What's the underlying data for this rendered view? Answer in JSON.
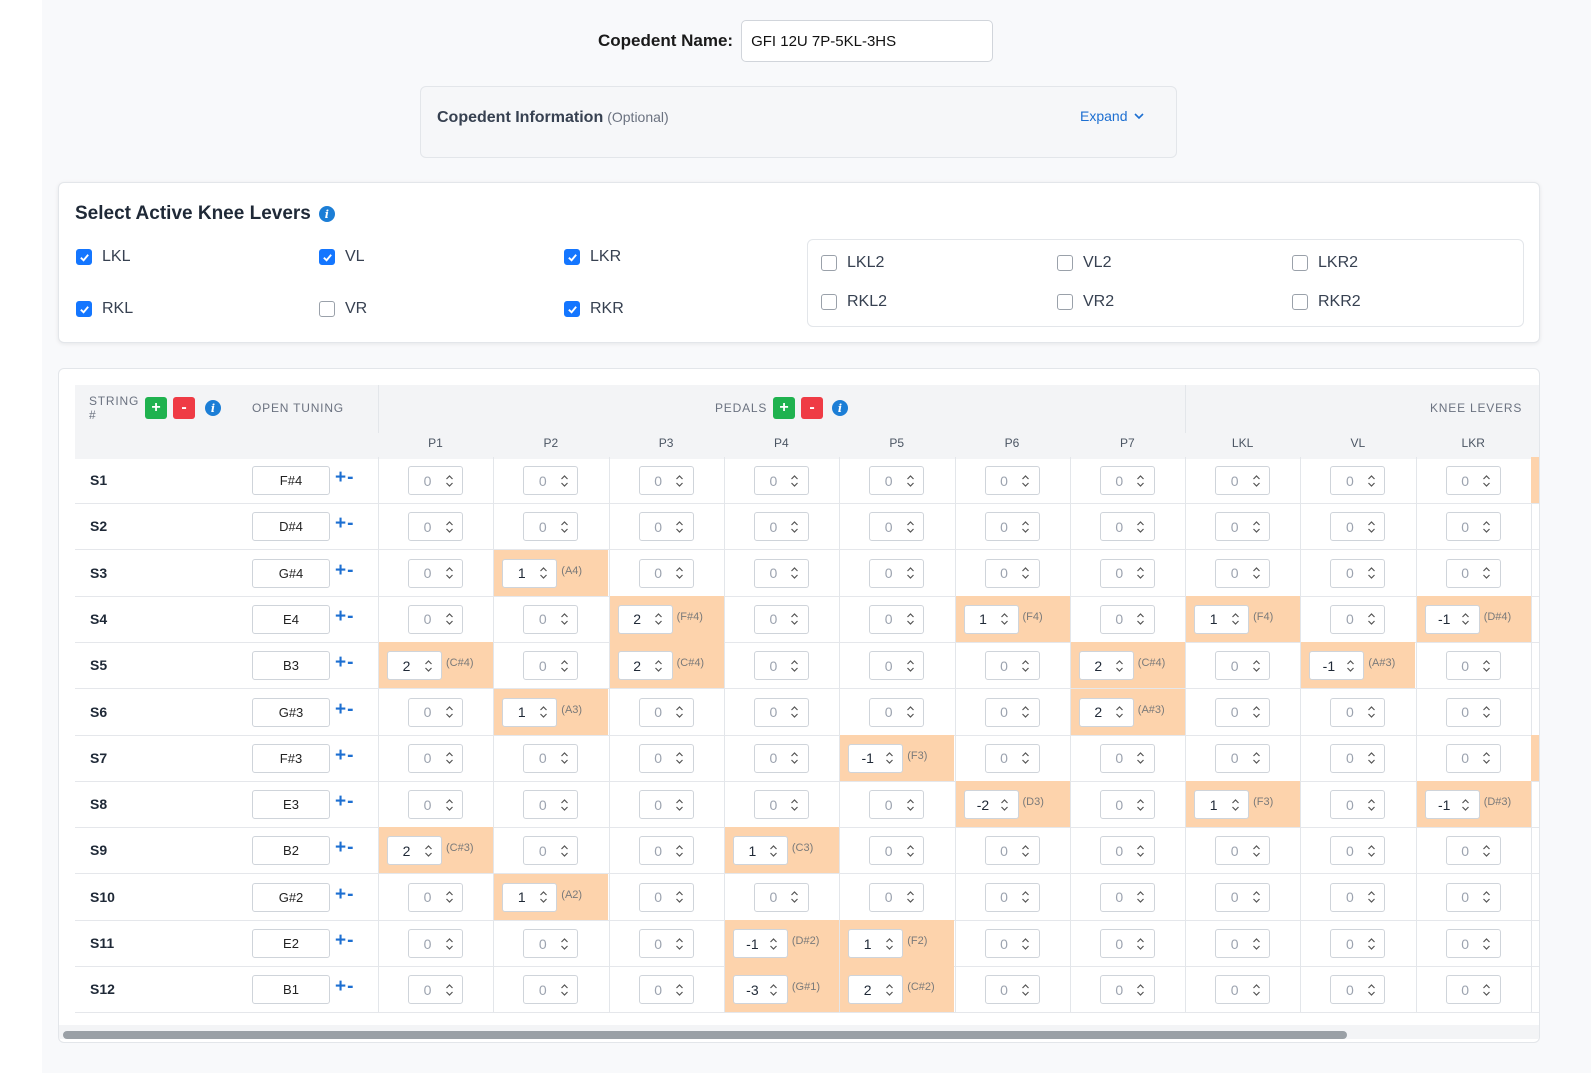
{
  "copedent_name": {
    "label": "Copedent Name:",
    "value": "GFI 12U 7P-5KL-3HS"
  },
  "info_panel": {
    "title": "Copedent Information",
    "optional": "(Optional)",
    "expand_label": "Expand"
  },
  "knee_levers_section": {
    "title": "Select Active Knee Levers",
    "primary": [
      {
        "label": "LKL",
        "checked": true
      },
      {
        "label": "VL",
        "checked": true
      },
      {
        "label": "LKR",
        "checked": true
      },
      {
        "label": "RKL",
        "checked": true
      },
      {
        "label": "VR",
        "checked": false
      },
      {
        "label": "RKR",
        "checked": true
      }
    ],
    "secondary": [
      {
        "label": "LKL2",
        "checked": false
      },
      {
        "label": "VL2",
        "checked": false
      },
      {
        "label": "LKR2",
        "checked": false
      },
      {
        "label": "RKL2",
        "checked": false
      },
      {
        "label": "VR2",
        "checked": false
      },
      {
        "label": "RKR2",
        "checked": false
      }
    ]
  },
  "table": {
    "string_header": "STRING #",
    "tuning_header": "OPEN TUNING",
    "pedals_header": "PEDALS",
    "knee_header": "KNEE LEVERS",
    "columns": [
      "P1",
      "P2",
      "P3",
      "P4",
      "P5",
      "P6",
      "P7",
      "LKL",
      "VL",
      "LKR"
    ],
    "rows": [
      {
        "string": "S1",
        "tuning": "F#4",
        "cells": [
          [
            "0",
            ""
          ],
          [
            "0",
            ""
          ],
          [
            "0",
            ""
          ],
          [
            "0",
            ""
          ],
          [
            "0",
            ""
          ],
          [
            "0",
            ""
          ],
          [
            "0",
            ""
          ],
          [
            "0",
            ""
          ],
          [
            "0",
            ""
          ],
          [
            "0",
            ""
          ]
        ]
      },
      {
        "string": "S2",
        "tuning": "D#4",
        "cells": [
          [
            "0",
            ""
          ],
          [
            "0",
            ""
          ],
          [
            "0",
            ""
          ],
          [
            "0",
            ""
          ],
          [
            "0",
            ""
          ],
          [
            "0",
            ""
          ],
          [
            "0",
            ""
          ],
          [
            "0",
            ""
          ],
          [
            "0",
            ""
          ],
          [
            "0",
            ""
          ]
        ]
      },
      {
        "string": "S3",
        "tuning": "G#4",
        "cells": [
          [
            "0",
            ""
          ],
          [
            "1",
            "(A4)"
          ],
          [
            "0",
            ""
          ],
          [
            "0",
            ""
          ],
          [
            "0",
            ""
          ],
          [
            "0",
            ""
          ],
          [
            "0",
            ""
          ],
          [
            "0",
            ""
          ],
          [
            "0",
            ""
          ],
          [
            "0",
            ""
          ]
        ]
      },
      {
        "string": "S4",
        "tuning": "E4",
        "cells": [
          [
            "0",
            ""
          ],
          [
            "0",
            ""
          ],
          [
            "2",
            "(F#4)"
          ],
          [
            "0",
            ""
          ],
          [
            "0",
            ""
          ],
          [
            "1",
            "(F4)"
          ],
          [
            "0",
            ""
          ],
          [
            "1",
            "(F4)"
          ],
          [
            "0",
            ""
          ],
          [
            "-1",
            "(D#4)"
          ]
        ]
      },
      {
        "string": "S5",
        "tuning": "B3",
        "cells": [
          [
            "2",
            "(C#4)"
          ],
          [
            "0",
            ""
          ],
          [
            "2",
            "(C#4)"
          ],
          [
            "0",
            ""
          ],
          [
            "0",
            ""
          ],
          [
            "0",
            ""
          ],
          [
            "2",
            "(C#4)"
          ],
          [
            "0",
            ""
          ],
          [
            "-1",
            "(A#3)"
          ],
          [
            "0",
            ""
          ]
        ]
      },
      {
        "string": "S6",
        "tuning": "G#3",
        "cells": [
          [
            "0",
            ""
          ],
          [
            "1",
            "(A3)"
          ],
          [
            "0",
            ""
          ],
          [
            "0",
            ""
          ],
          [
            "0",
            ""
          ],
          [
            "0",
            ""
          ],
          [
            "2",
            "(A#3)"
          ],
          [
            "0",
            ""
          ],
          [
            "0",
            ""
          ],
          [
            "0",
            ""
          ]
        ]
      },
      {
        "string": "S7",
        "tuning": "F#3",
        "cells": [
          [
            "0",
            ""
          ],
          [
            "0",
            ""
          ],
          [
            "0",
            ""
          ],
          [
            "0",
            ""
          ],
          [
            "-1",
            "(F3)"
          ],
          [
            "0",
            ""
          ],
          [
            "0",
            ""
          ],
          [
            "0",
            ""
          ],
          [
            "0",
            ""
          ],
          [
            "0",
            ""
          ]
        ]
      },
      {
        "string": "S8",
        "tuning": "E3",
        "cells": [
          [
            "0",
            ""
          ],
          [
            "0",
            ""
          ],
          [
            "0",
            ""
          ],
          [
            "0",
            ""
          ],
          [
            "0",
            ""
          ],
          [
            "-2",
            "(D3)"
          ],
          [
            "0",
            ""
          ],
          [
            "1",
            "(F3)"
          ],
          [
            "0",
            ""
          ],
          [
            "-1",
            "(D#3)"
          ]
        ]
      },
      {
        "string": "S9",
        "tuning": "B2",
        "cells": [
          [
            "2",
            "(C#3)"
          ],
          [
            "0",
            ""
          ],
          [
            "0",
            ""
          ],
          [
            "1",
            "(C3)"
          ],
          [
            "0",
            ""
          ],
          [
            "0",
            ""
          ],
          [
            "0",
            ""
          ],
          [
            "0",
            ""
          ],
          [
            "0",
            ""
          ],
          [
            "0",
            ""
          ]
        ]
      },
      {
        "string": "S10",
        "tuning": "G#2",
        "cells": [
          [
            "0",
            ""
          ],
          [
            "1",
            "(A2)"
          ],
          [
            "0",
            ""
          ],
          [
            "0",
            ""
          ],
          [
            "0",
            ""
          ],
          [
            "0",
            ""
          ],
          [
            "0",
            ""
          ],
          [
            "0",
            ""
          ],
          [
            "0",
            ""
          ],
          [
            "0",
            ""
          ]
        ]
      },
      {
        "string": "S11",
        "tuning": "E2",
        "cells": [
          [
            "0",
            ""
          ],
          [
            "0",
            ""
          ],
          [
            "0",
            ""
          ],
          [
            "-1",
            "(D#2)"
          ],
          [
            "1",
            "(F2)"
          ],
          [
            "0",
            ""
          ],
          [
            "0",
            ""
          ],
          [
            "0",
            ""
          ],
          [
            "0",
            ""
          ],
          [
            "0",
            ""
          ]
        ]
      },
      {
        "string": "S12",
        "tuning": "B1",
        "cells": [
          [
            "0",
            ""
          ],
          [
            "0",
            ""
          ],
          [
            "0",
            ""
          ],
          [
            "-3",
            "(G#1)"
          ],
          [
            "2",
            "(C#2)"
          ],
          [
            "0",
            ""
          ],
          [
            "0",
            ""
          ],
          [
            "0",
            ""
          ],
          [
            "0",
            ""
          ],
          [
            "0",
            ""
          ]
        ]
      }
    ]
  },
  "colors": {
    "highlight": "#fdd3ac",
    "accent_blue": "#1d6fd1",
    "add_green": "#1fb24f",
    "remove_red": "#ef3b45"
  }
}
